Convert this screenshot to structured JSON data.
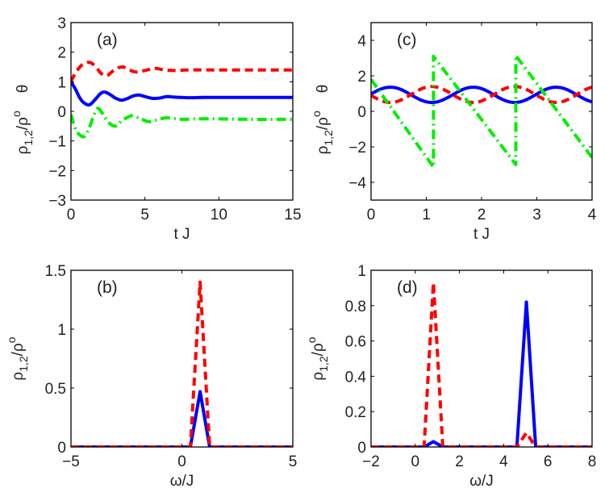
{
  "chart_data": [
    {
      "id": "a",
      "type": "line",
      "panel_label": "(a)",
      "xlabel": "t J",
      "ylabel_parts": [
        "ρ",
        "1,2",
        "/ρ",
        "o",
        "θ"
      ],
      "xlim": [
        0,
        15
      ],
      "ylim": [
        -3,
        3
      ],
      "xticks": [
        0,
        5,
        10,
        15
      ],
      "yticks": [
        -3,
        -2,
        -1,
        0,
        1,
        2,
        3
      ],
      "grid": false,
      "series": [
        {
          "name": "rho1",
          "style": "solid",
          "color": "#0000ff",
          "x": [
            0,
            0.3,
            0.6,
            0.9,
            1.25,
            1.6,
            2.0,
            2.3,
            2.7,
            3.0,
            3.4,
            3.8,
            4.2,
            4.6,
            5.0,
            5.5,
            6.0,
            6.5,
            7.0,
            8.0,
            9.0,
            10,
            12,
            15
          ],
          "y": [
            1.0,
            0.75,
            0.45,
            0.28,
            0.22,
            0.38,
            0.6,
            0.65,
            0.55,
            0.45,
            0.38,
            0.43,
            0.52,
            0.55,
            0.5,
            0.44,
            0.45,
            0.5,
            0.48,
            0.46,
            0.47,
            0.47,
            0.47,
            0.47
          ]
        },
        {
          "name": "rho2",
          "style": "dashed",
          "color": "#ff0000",
          "x": [
            0,
            0.3,
            0.7,
            1.0,
            1.3,
            1.7,
            2.0,
            2.4,
            2.8,
            3.1,
            3.5,
            3.9,
            4.2,
            4.5,
            5.0,
            5.5,
            5.8,
            6.3,
            7.0,
            8.0,
            10,
            15
          ],
          "y": [
            1.0,
            1.3,
            1.55,
            1.63,
            1.65,
            1.5,
            1.3,
            1.2,
            1.35,
            1.45,
            1.5,
            1.42,
            1.35,
            1.33,
            1.38,
            1.44,
            1.45,
            1.4,
            1.38,
            1.4,
            1.4,
            1.4
          ]
        },
        {
          "name": "theta",
          "style": "dashdot",
          "color": "#00ee00",
          "x": [
            0,
            0.3,
            0.6,
            0.9,
            1.2,
            1.5,
            1.8,
            2.1,
            2.5,
            3.0,
            3.5,
            4.1,
            4.7,
            5.3,
            5.9,
            6.5,
            7.5,
            9.0,
            12,
            15
          ],
          "y": [
            -0.1,
            -0.6,
            -0.8,
            -0.85,
            -0.6,
            -0.2,
            0.1,
            -0.05,
            -0.35,
            -0.5,
            -0.3,
            -0.15,
            -0.25,
            -0.35,
            -0.28,
            -0.22,
            -0.27,
            -0.25,
            -0.27,
            -0.27
          ]
        }
      ]
    },
    {
      "id": "c",
      "type": "line",
      "panel_label": "(c)",
      "xlabel": "t J",
      "ylabel_parts": [
        "ρ",
        "1,2",
        "/ρ",
        "o",
        "θ"
      ],
      "xlim": [
        0,
        4
      ],
      "ylim": [
        -5,
        5
      ],
      "xticks": [
        0,
        1,
        2,
        3,
        4
      ],
      "yticks": [
        -4,
        -2,
        0,
        2,
        4
      ],
      "grid": false,
      "series": [
        {
          "name": "rho1",
          "style": "solid",
          "color": "#0000ff",
          "function": "oscillation",
          "mean": 0.93,
          "amplitude": 0.43,
          "period": 1.5,
          "peak_at": 0.35
        },
        {
          "name": "rho2",
          "style": "dashed",
          "color": "#ff0000",
          "function": "oscillation",
          "mean": 0.95,
          "amplitude": 0.45,
          "period": 1.5,
          "peak_at": 1.1
        },
        {
          "name": "theta",
          "style": "dashdot",
          "color": "#00ee00",
          "x": [
            0,
            1.13,
            1.13,
            2.62,
            2.62,
            4.0
          ],
          "y": [
            1.8,
            -3.14,
            3.1,
            -3.0,
            3.14,
            -2.6
          ]
        }
      ]
    },
    {
      "id": "b",
      "type": "line",
      "panel_label": "(b)",
      "xlabel": "ω/J",
      "ylabel_parts": [
        "ρ",
        "1,2",
        "/ρ",
        "o",
        ""
      ],
      "xlim": [
        -5,
        5
      ],
      "ylim": [
        0,
        1.5
      ],
      "xticks": [
        -5,
        0,
        5
      ],
      "yticks": [
        0,
        0.5,
        1,
        1.5
      ],
      "grid": false,
      "series": [
        {
          "name": "rho1",
          "style": "solid",
          "color": "#0000ff",
          "x": [
            -5,
            0.38,
            0.82,
            1.25,
            5
          ],
          "y": [
            0,
            0,
            0.47,
            0,
            0
          ]
        },
        {
          "name": "rho2",
          "style": "dashed",
          "color": "#ff0000",
          "x": [
            -5,
            0.38,
            0.82,
            1.25,
            5
          ],
          "y": [
            0,
            0,
            1.4,
            0,
            0
          ]
        }
      ]
    },
    {
      "id": "d",
      "type": "line",
      "panel_label": "(d)",
      "xlabel": "ω/J",
      "ylabel_parts": [
        "ρ",
        "1,2",
        "/ρ",
        "o",
        ""
      ],
      "xlim": [
        -2,
        8
      ],
      "ylim": [
        0,
        1
      ],
      "xticks": [
        -2,
        0,
        2,
        4,
        6,
        8
      ],
      "yticks": [
        0,
        0.2,
        0.4,
        0.6,
        0.8,
        1
      ],
      "grid": false,
      "series": [
        {
          "name": "rho1",
          "style": "solid",
          "color": "#0000ff",
          "x": [
            -2,
            0.4,
            0.82,
            1.25,
            4.6,
            5.03,
            5.45,
            8
          ],
          "y": [
            0,
            0,
            0.03,
            0,
            0,
            0.82,
            0,
            0
          ]
        },
        {
          "name": "rho2",
          "style": "dashed",
          "color": "#ff0000",
          "x": [
            -2,
            0.4,
            0.82,
            1.25,
            4.6,
            5.03,
            5.45,
            8
          ],
          "y": [
            0,
            0,
            0.93,
            0,
            0,
            0.08,
            0,
            0
          ]
        }
      ]
    }
  ]
}
